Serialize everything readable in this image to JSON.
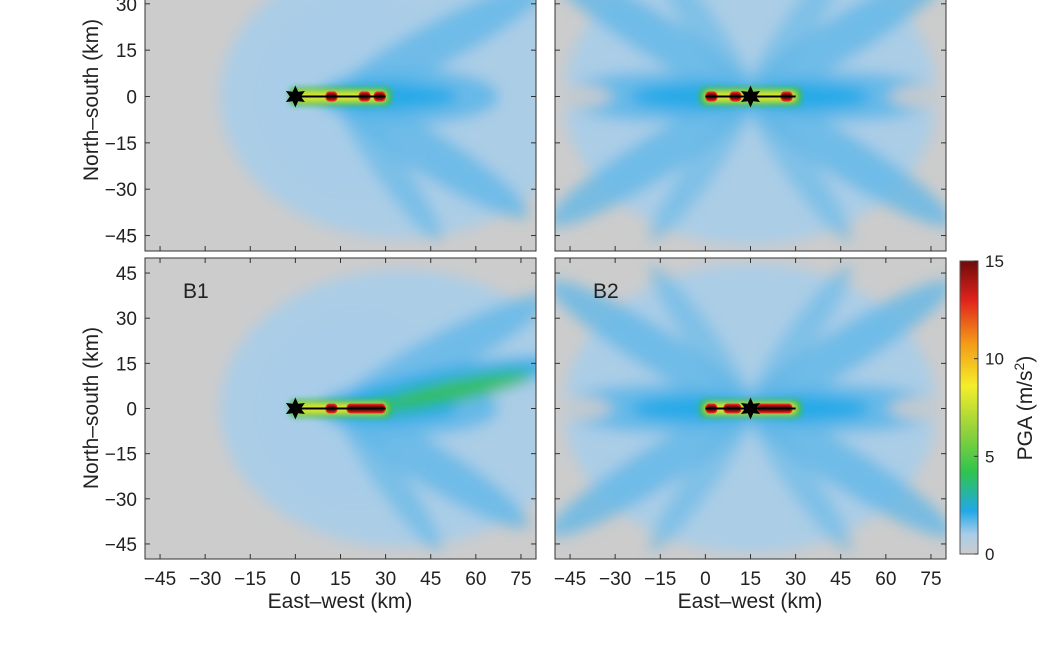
{
  "colors": {
    "background": "#cccccc",
    "light_blue": "#a9cde8",
    "mid_blue": "#5cb6e8",
    "deep_blue": "#1ea8e8",
    "green": "#35c04a",
    "yellow": "#f4ee2a",
    "orange": "#f39a18",
    "red": "#e0231c",
    "dark_red": "#7a0e0e",
    "fault_line": "#000000",
    "epicenter": "#000000"
  },
  "chart_data": [
    {
      "type": "heatmap",
      "panel_label": "",
      "xlim": [
        -50,
        80
      ],
      "ylim": [
        -50,
        50
      ],
      "x_ticks": [
        -45,
        -30,
        -15,
        0,
        15,
        30,
        45,
        60,
        75
      ],
      "y_ticks": [
        -45,
        -30,
        -15,
        0,
        15,
        30
      ],
      "x_tick_labels_visible": false,
      "y_tick_labels_visible": true,
      "xlabel": "",
      "ylabel": "North–south (km)",
      "fault": {
        "x": [
          0,
          30
        ],
        "y": [
          0,
          0
        ]
      },
      "epicenter": {
        "x": 0,
        "y": 0
      },
      "rupture": "unilateral-east",
      "high_pga_segments": [
        [
          10,
          14
        ],
        [
          21,
          25
        ],
        [
          26,
          30
        ]
      ]
    },
    {
      "type": "heatmap",
      "panel_label": "",
      "xlim": [
        -50,
        80
      ],
      "ylim": [
        -50,
        50
      ],
      "x_ticks": [
        -45,
        -30,
        -15,
        0,
        15,
        30,
        45,
        60,
        75
      ],
      "y_ticks": [
        -45,
        -30,
        -15,
        0,
        15,
        30
      ],
      "x_tick_labels_visible": false,
      "y_tick_labels_visible": false,
      "xlabel": "",
      "ylabel": "",
      "fault": {
        "x": [
          0,
          30
        ],
        "y": [
          0,
          0
        ]
      },
      "epicenter": {
        "x": 15,
        "y": 0
      },
      "rupture": "bilateral",
      "high_pga_segments": [
        [
          0,
          4
        ],
        [
          8,
          12
        ],
        [
          25,
          29
        ]
      ]
    },
    {
      "type": "heatmap",
      "panel_label": "B1",
      "xlim": [
        -50,
        80
      ],
      "ylim": [
        -50,
        50
      ],
      "x_ticks": [
        -45,
        -30,
        -15,
        0,
        15,
        30,
        45,
        60,
        75
      ],
      "y_ticks": [
        -45,
        -30,
        -15,
        0,
        15,
        30,
        45
      ],
      "x_tick_labels_visible": true,
      "y_tick_labels_visible": true,
      "xlabel": "East–west (km)",
      "ylabel": "North–south (km)",
      "fault": {
        "x": [
          0,
          30
        ],
        "y": [
          0,
          0
        ]
      },
      "epicenter": {
        "x": 0,
        "y": 0
      },
      "rupture": "unilateral-east",
      "high_pga_segments": [
        [
          10,
          14
        ],
        [
          17,
          30
        ]
      ]
    },
    {
      "type": "heatmap",
      "panel_label": "B2",
      "xlim": [
        -50,
        80
      ],
      "ylim": [
        -50,
        50
      ],
      "x_ticks": [
        -45,
        -30,
        -15,
        0,
        15,
        30,
        45,
        60,
        75
      ],
      "y_ticks": [
        -45,
        -30,
        -15,
        0,
        15,
        30,
        45
      ],
      "x_tick_labels_visible": true,
      "y_tick_labels_visible": false,
      "xlabel": "East–west (km)",
      "ylabel": "",
      "fault": {
        "x": [
          0,
          30
        ],
        "y": [
          0,
          0
        ]
      },
      "epicenter": {
        "x": 15,
        "y": 0
      },
      "rupture": "bilateral",
      "high_pga_segments": [
        [
          0,
          4
        ],
        [
          6,
          12
        ],
        [
          17,
          29
        ]
      ]
    }
  ],
  "colorbar": {
    "label_prefix": "PGA (m/s",
    "label_exponent": "2",
    "label_suffix": ")",
    "min": 0,
    "max": 15,
    "ticks": [
      0,
      5,
      10,
      15
    ],
    "colormap": [
      [
        0,
        "#cccccc"
      ],
      [
        1.0,
        "#a9cde8"
      ],
      [
        2.2,
        "#22a8e8"
      ],
      [
        4.2,
        "#2fc44c"
      ],
      [
        6.5,
        "#9ad43a"
      ],
      [
        8.6,
        "#f4ee2a"
      ],
      [
        10.8,
        "#f39a18"
      ],
      [
        13.0,
        "#e0231c"
      ],
      [
        15,
        "#6e0b0b"
      ]
    ]
  }
}
